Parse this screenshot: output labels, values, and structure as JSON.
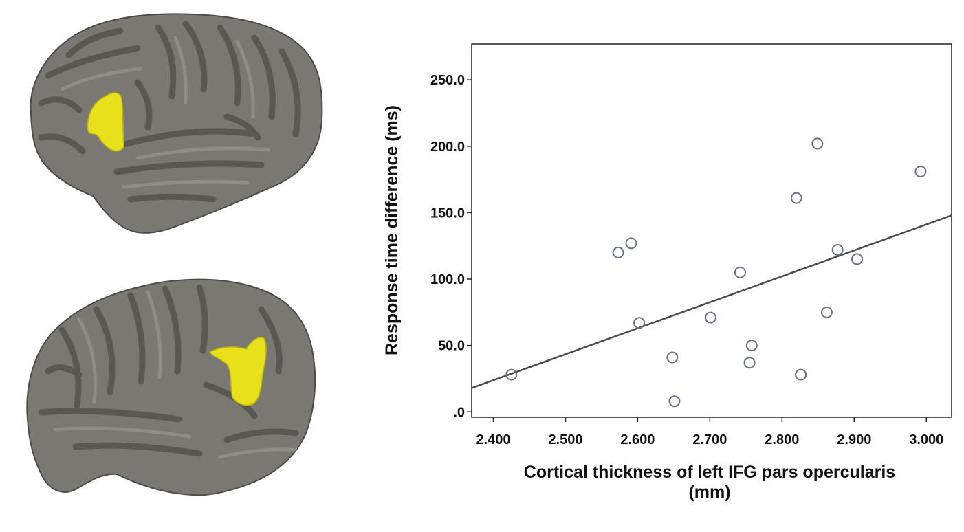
{
  "colors": {
    "brain_base": "#7a7873",
    "brain_sulcus": "#5a5853",
    "highlight": "#e8e01a",
    "marker_stroke": "#6b7088",
    "fit_line": "#4a4a4a",
    "axis": "#222222"
  },
  "images": [
    {
      "name": "brain-lateral-view-top",
      "highlight_region": "left IFG pars opercularis"
    },
    {
      "name": "brain-lateral-view-bottom",
      "highlight_region": "left IFG pars opercularis"
    }
  ],
  "chart_data": {
    "type": "scatter",
    "title": "",
    "xlabel_lines": [
      "Cortical thickness of left IFG pars opercularis",
      "(mm)"
    ],
    "ylabel": "Response time difference (ms)",
    "xlim": [
      2.37,
      3.035
    ],
    "ylim": [
      -4.0,
      277.0
    ],
    "x_ticks": [
      2.4,
      2.5,
      2.6,
      2.7,
      2.8,
      2.9,
      3.0
    ],
    "x_tick_labels": [
      "2.400",
      "2.500",
      "2.600",
      "2.700",
      "2.800",
      "2.900",
      "3.000"
    ],
    "y_ticks": [
      0,
      50,
      100,
      150,
      200,
      250
    ],
    "y_tick_labels": [
      ".0",
      "50.0",
      "100.0",
      "150.0",
      "200.0",
      "250.0"
    ],
    "grid": false,
    "legend": "none",
    "marker": "open-circle",
    "points": [
      {
        "x": 2.425,
        "y": 28
      },
      {
        "x": 2.573,
        "y": 120
      },
      {
        "x": 2.591,
        "y": 127
      },
      {
        "x": 2.602,
        "y": 67
      },
      {
        "x": 2.648,
        "y": 41
      },
      {
        "x": 2.651,
        "y": 8
      },
      {
        "x": 2.701,
        "y": 71
      },
      {
        "x": 2.742,
        "y": 105
      },
      {
        "x": 2.755,
        "y": 37
      },
      {
        "x": 2.758,
        "y": 50
      },
      {
        "x": 2.82,
        "y": 161
      },
      {
        "x": 2.826,
        "y": 28
      },
      {
        "x": 2.849,
        "y": 202
      },
      {
        "x": 2.862,
        "y": 75
      },
      {
        "x": 2.877,
        "y": 122
      },
      {
        "x": 2.904,
        "y": 115
      },
      {
        "x": 2.992,
        "y": 181
      }
    ],
    "fit_line": {
      "x1": 2.37,
      "y1": 18,
      "x2": 3.035,
      "y2": 148
    }
  }
}
